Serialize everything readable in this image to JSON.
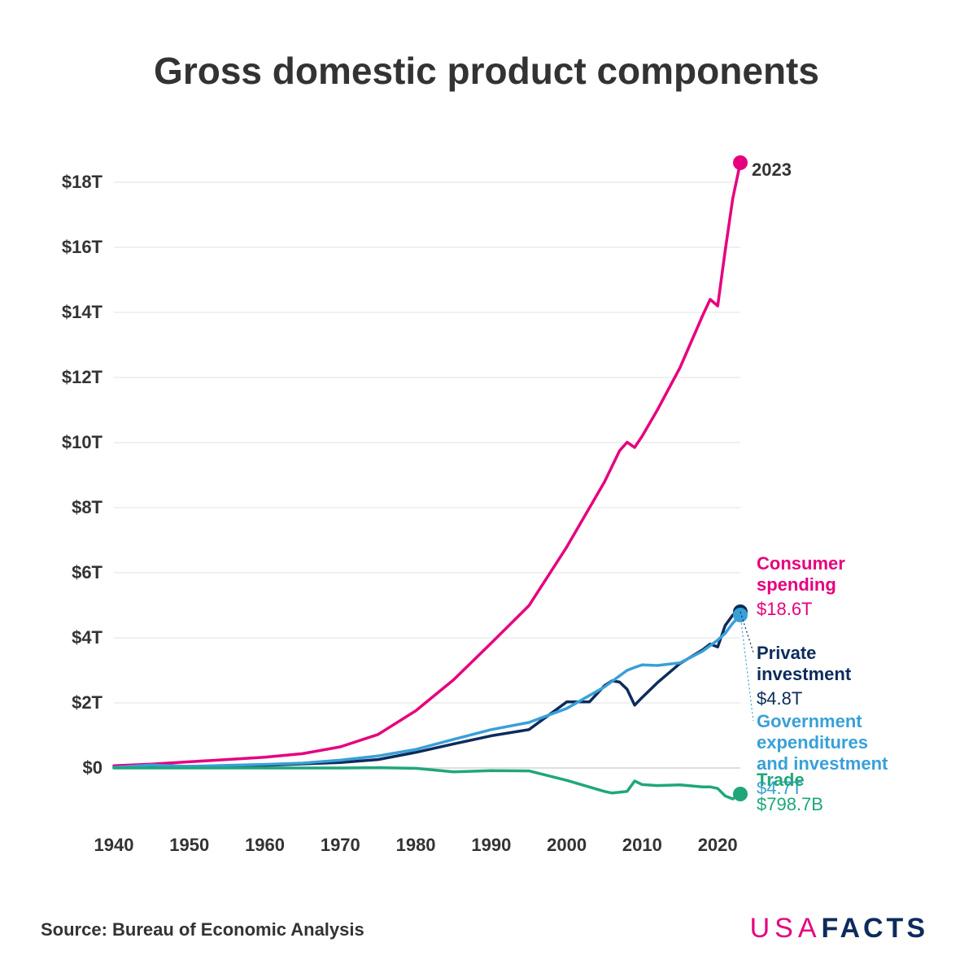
{
  "title": "Gross domestic product components",
  "source": "Source: Bureau of Economic Analysis",
  "brand": {
    "left": "USA",
    "right": "FACTS"
  },
  "chart": {
    "type": "line",
    "background_color": "#ffffff",
    "grid_color": "#e0e0e0",
    "axis_text_color": "#333333",
    "axis_fontsize": 22,
    "x": {
      "min": 1940,
      "max": 2023,
      "ticks": [
        1940,
        1950,
        1960,
        1970,
        1980,
        1990,
        2000,
        2010,
        2020
      ]
    },
    "y": {
      "min": -1.5,
      "max": 19,
      "ticks": [
        0,
        2,
        4,
        6,
        8,
        10,
        12,
        14,
        16,
        18
      ],
      "tick_labels": [
        "$0",
        "$2T",
        "$4T",
        "$6T",
        "$8T",
        "$10T",
        "$12T",
        "$14T",
        "$16T",
        "$18T"
      ]
    },
    "year_label": "2023",
    "line_width": 3.5,
    "dot_radius": 9,
    "series": [
      {
        "id": "consumer",
        "name_lines": [
          "Consumer",
          "spending"
        ],
        "value_label": "$18.6T",
        "color": "#e6007e",
        "data": [
          [
            1940,
            0.07
          ],
          [
            1945,
            0.12
          ],
          [
            1950,
            0.19
          ],
          [
            1955,
            0.26
          ],
          [
            1960,
            0.33
          ],
          [
            1965,
            0.44
          ],
          [
            1970,
            0.65
          ],
          [
            1975,
            1.03
          ],
          [
            1980,
            1.76
          ],
          [
            1985,
            2.71
          ],
          [
            1990,
            3.84
          ],
          [
            1995,
            4.99
          ],
          [
            2000,
            6.79
          ],
          [
            2005,
            8.79
          ],
          [
            2007,
            9.75
          ],
          [
            2008,
            10.01
          ],
          [
            2009,
            9.85
          ],
          [
            2010,
            10.2
          ],
          [
            2012,
            11.0
          ],
          [
            2015,
            12.3
          ],
          [
            2018,
            13.9
          ],
          [
            2019,
            14.4
          ],
          [
            2020,
            14.2
          ],
          [
            2021,
            15.9
          ],
          [
            2022,
            17.5
          ],
          [
            2023,
            18.6
          ]
        ],
        "label_y_top": 6.1
      },
      {
        "id": "private",
        "name_lines": [
          "Private",
          "investment"
        ],
        "value_label": "$4.8T",
        "color": "#0d2b5c",
        "data": [
          [
            1940,
            0.01
          ],
          [
            1950,
            0.05
          ],
          [
            1960,
            0.08
          ],
          [
            1970,
            0.17
          ],
          [
            1975,
            0.26
          ],
          [
            1980,
            0.48
          ],
          [
            1985,
            0.74
          ],
          [
            1990,
            0.99
          ],
          [
            1995,
            1.18
          ],
          [
            2000,
            2.03
          ],
          [
            2003,
            2.03
          ],
          [
            2005,
            2.53
          ],
          [
            2006,
            2.68
          ],
          [
            2007,
            2.64
          ],
          [
            2008,
            2.42
          ],
          [
            2009,
            1.93
          ],
          [
            2010,
            2.17
          ],
          [
            2012,
            2.62
          ],
          [
            2015,
            3.21
          ],
          [
            2018,
            3.63
          ],
          [
            2019,
            3.81
          ],
          [
            2020,
            3.72
          ],
          [
            2021,
            4.38
          ],
          [
            2022,
            4.7
          ],
          [
            2023,
            4.8
          ]
        ],
        "leader_to": [
          2023,
          4.8
        ],
        "label_y_top": 3.35
      },
      {
        "id": "gov",
        "name_lines": [
          "Government",
          "expenditures",
          "and investment"
        ],
        "value_label": "$4.7T",
        "color": "#39a0d8",
        "data": [
          [
            1940,
            0.02
          ],
          [
            1945,
            0.09
          ],
          [
            1950,
            0.05
          ],
          [
            1955,
            0.08
          ],
          [
            1960,
            0.11
          ],
          [
            1965,
            0.15
          ],
          [
            1970,
            0.24
          ],
          [
            1975,
            0.37
          ],
          [
            1980,
            0.57
          ],
          [
            1985,
            0.88
          ],
          [
            1990,
            1.18
          ],
          [
            1995,
            1.4
          ],
          [
            2000,
            1.83
          ],
          [
            2005,
            2.49
          ],
          [
            2008,
            3.0
          ],
          [
            2009,
            3.09
          ],
          [
            2010,
            3.17
          ],
          [
            2012,
            3.15
          ],
          [
            2015,
            3.23
          ],
          [
            2018,
            3.59
          ],
          [
            2020,
            3.93
          ],
          [
            2021,
            4.14
          ],
          [
            2022,
            4.45
          ],
          [
            2023,
            4.7
          ]
        ],
        "leader_to": [
          2023,
          4.7
        ],
        "label_y_top": 1.25
      },
      {
        "id": "trade",
        "name_lines": [
          "Trade"
        ],
        "value_label": "$798.7B",
        "color": "#1fa77a",
        "data": [
          [
            1940,
            0.0
          ],
          [
            1950,
            0.0
          ],
          [
            1960,
            0.0
          ],
          [
            1970,
            0.0
          ],
          [
            1975,
            0.01
          ],
          [
            1980,
            -0.01
          ],
          [
            1985,
            -0.12
          ],
          [
            1990,
            -0.08
          ],
          [
            1995,
            -0.09
          ],
          [
            2000,
            -0.38
          ],
          [
            2005,
            -0.72
          ],
          [
            2006,
            -0.77
          ],
          [
            2008,
            -0.72
          ],
          [
            2009,
            -0.4
          ],
          [
            2010,
            -0.51
          ],
          [
            2012,
            -0.54
          ],
          [
            2015,
            -0.52
          ],
          [
            2018,
            -0.58
          ],
          [
            2019,
            -0.58
          ],
          [
            2020,
            -0.63
          ],
          [
            2021,
            -0.86
          ],
          [
            2022,
            -0.95
          ],
          [
            2023,
            -0.8
          ]
        ],
        "label_y_top": -0.55
      }
    ]
  }
}
